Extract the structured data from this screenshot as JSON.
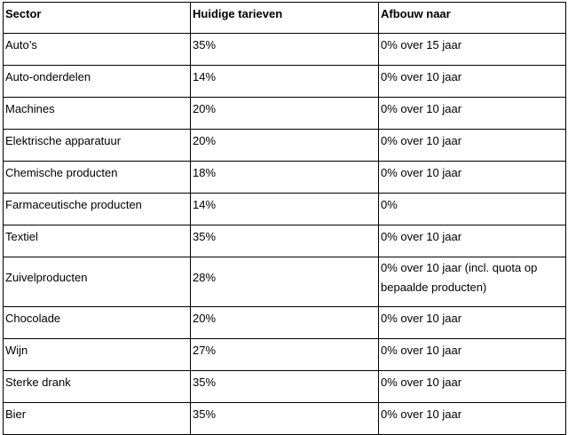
{
  "table": {
    "header": [
      "Sector",
      "Huidige tarieven",
      "Afbouw naar"
    ],
    "rows": [
      [
        "Auto’s",
        "35%",
        "0% over 15 jaar"
      ],
      [
        "Auto-onderdelen",
        "14%",
        "0% over 10 jaar"
      ],
      [
        "Machines",
        "20%",
        "0% over 10 jaar"
      ],
      [
        "Elektrische apparatuur",
        "20%",
        "0% over 10 jaar"
      ],
      [
        "Chemische producten",
        "18%",
        "0% over 10 jaar"
      ],
      [
        "Farmaceutische producten",
        "14%",
        "0%"
      ],
      [
        "Textiel",
        "35%",
        "0% over 10 jaar"
      ],
      [
        "Zuivelproducten",
        "28%",
        "0% over 10 jaar (incl. quota op bepaalde producten)"
      ],
      [
        "Chocolade",
        "20%",
        "0% over 10 jaar"
      ],
      [
        "Wijn",
        "27%",
        "0% over 10 jaar"
      ],
      [
        "Sterke drank",
        "35%",
        "0% over 10 jaar"
      ],
      [
        "Bier",
        "35%",
        "0% over 10 jaar"
      ]
    ]
  }
}
